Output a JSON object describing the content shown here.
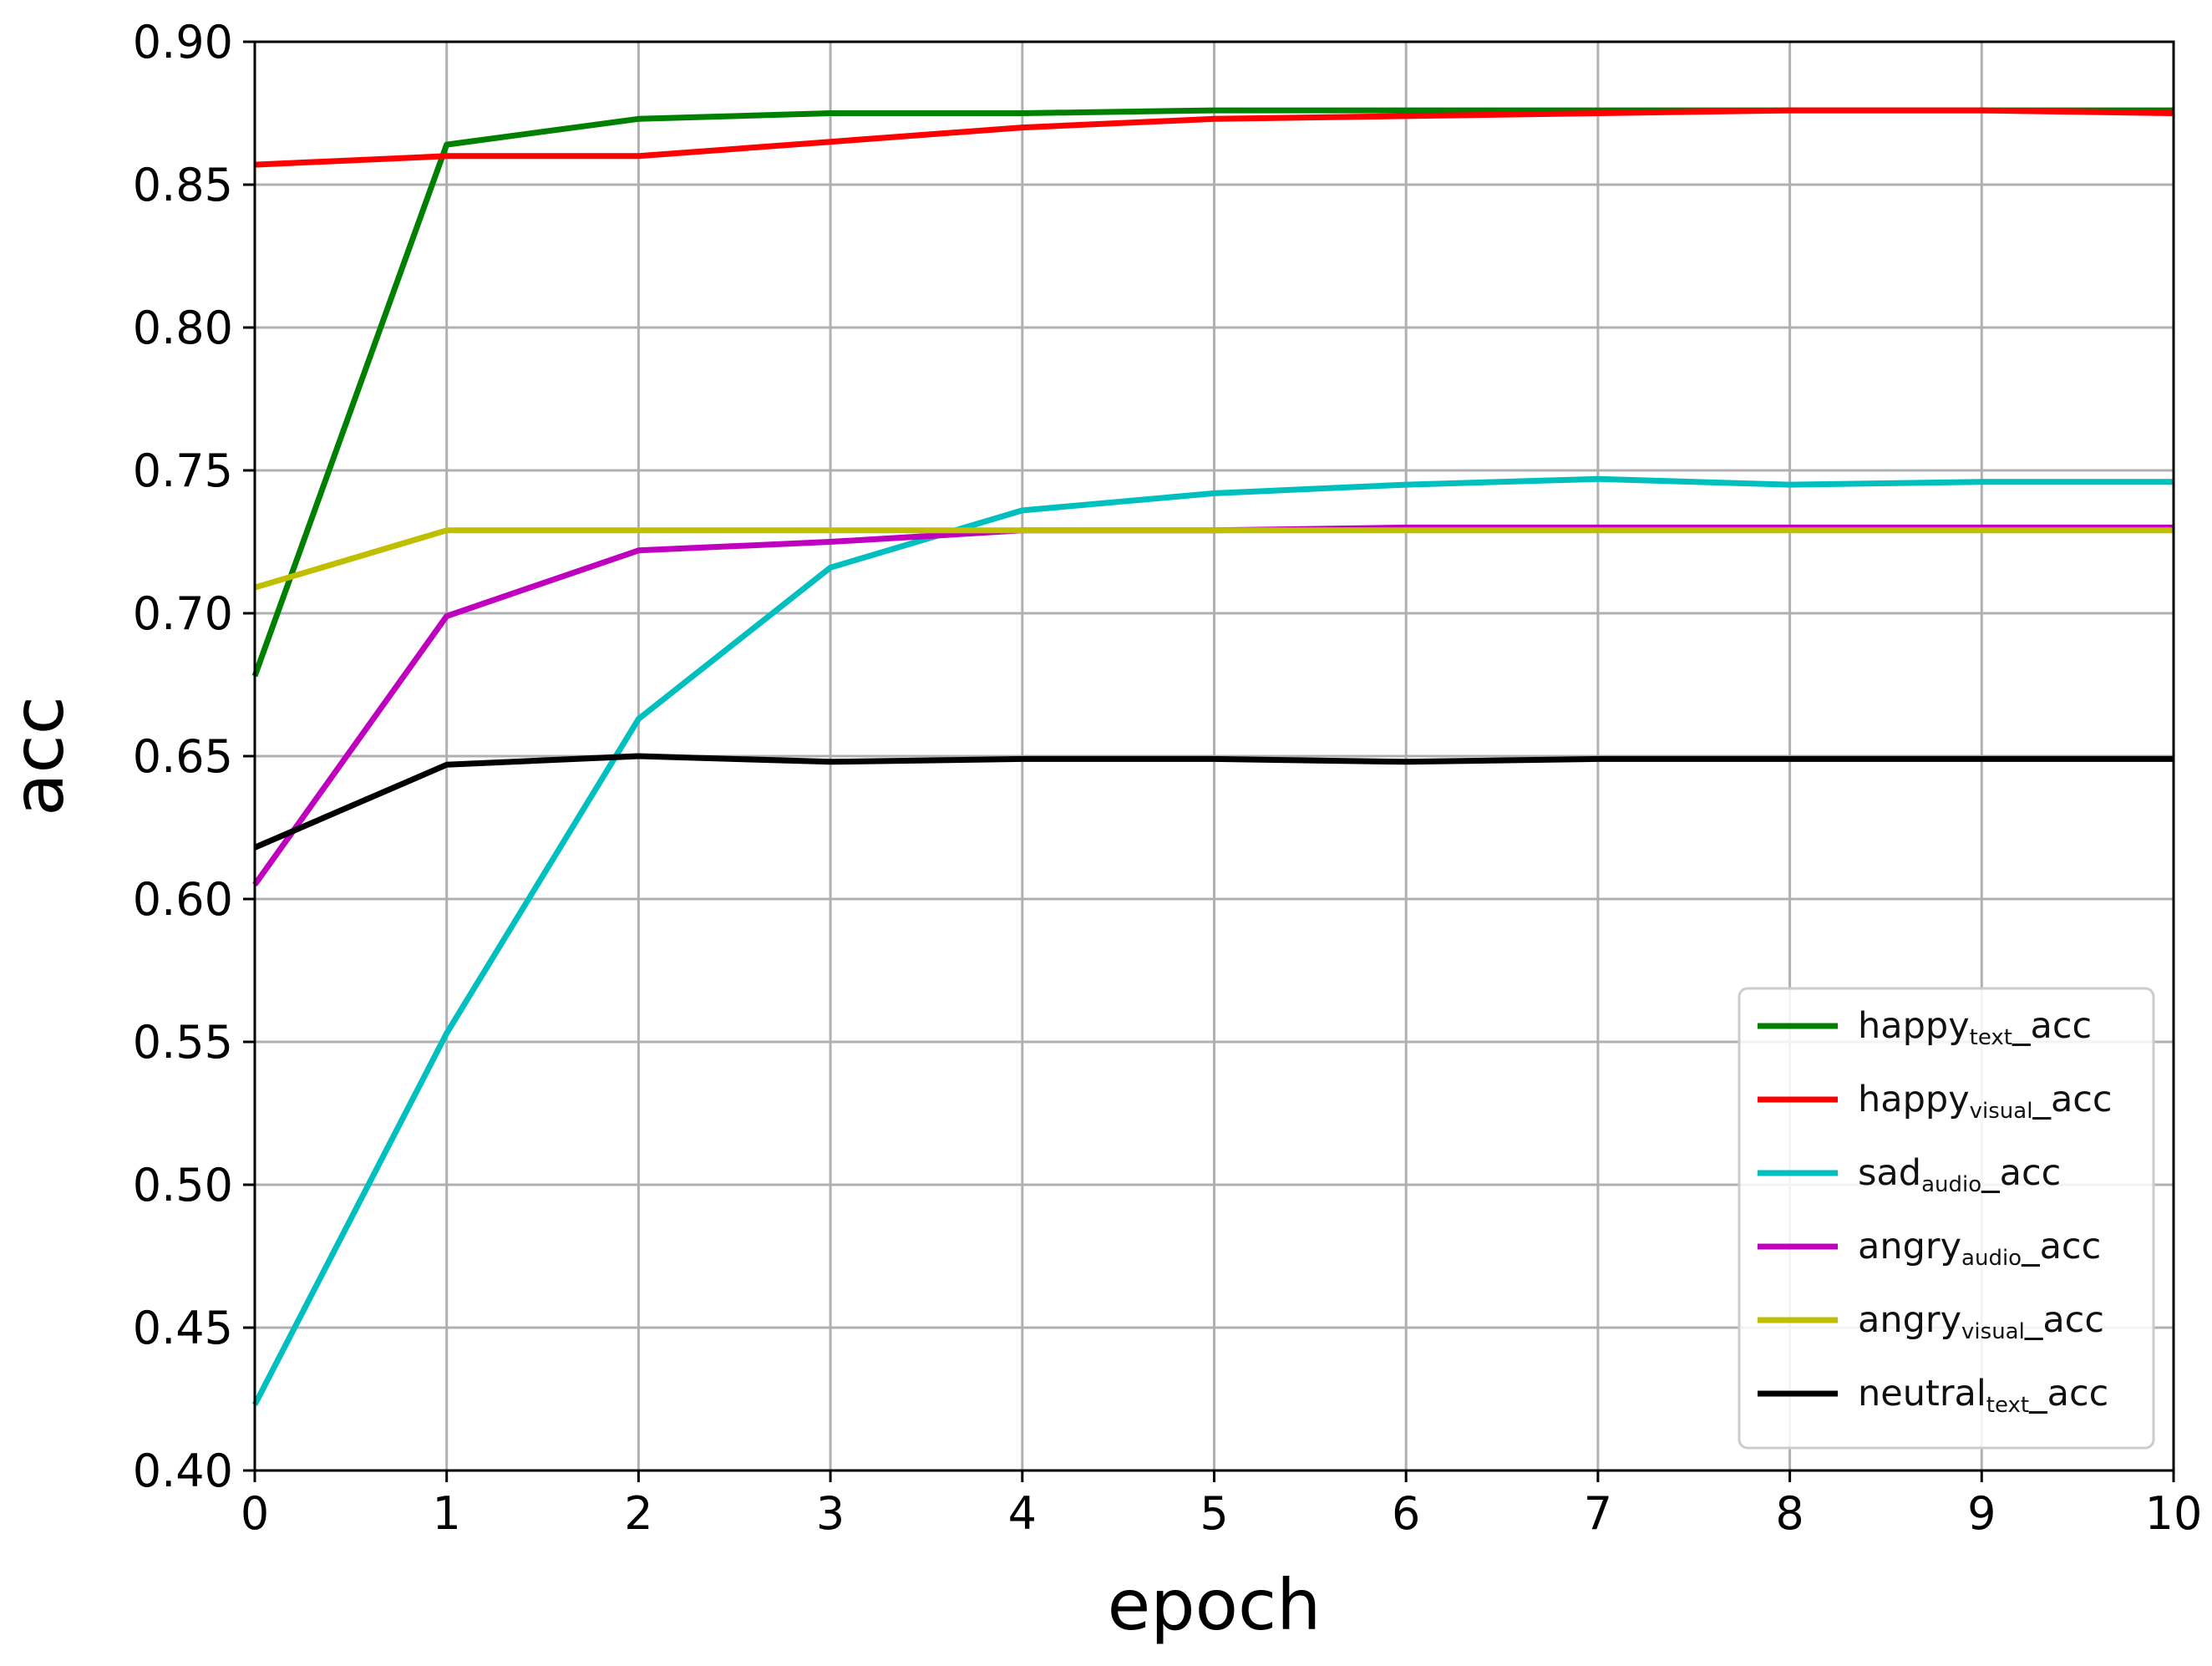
{
  "chart_data": {
    "type": "line",
    "title": "",
    "xlabel": "epoch",
    "ylabel": "acc",
    "xlim": [
      0,
      10
    ],
    "ylim": [
      0.4,
      0.9
    ],
    "xticks": [
      "0",
      "1",
      "2",
      "3",
      "4",
      "5",
      "6",
      "7",
      "8",
      "9",
      "10"
    ],
    "yticks": [
      "0.40",
      "0.45",
      "0.50",
      "0.55",
      "0.60",
      "0.65",
      "0.70",
      "0.75",
      "0.80",
      "0.85",
      "0.90"
    ],
    "grid": true,
    "legend_position": "lower-right",
    "x": [
      0,
      1,
      2,
      3,
      4,
      5,
      6,
      7,
      8,
      9,
      10
    ],
    "series": [
      {
        "name": "happy_text_acc",
        "base": "happy",
        "sub": "text",
        "suffix": "_acc",
        "color": "#008000",
        "values": [
          0.678,
          0.864,
          0.873,
          0.875,
          0.875,
          0.876,
          0.876,
          0.876,
          0.876,
          0.876,
          0.876
        ]
      },
      {
        "name": "happy_visual_acc",
        "base": "happy",
        "sub": "visual",
        "suffix": "_acc",
        "color": "#ff0000",
        "values": [
          0.857,
          0.86,
          0.86,
          0.865,
          0.87,
          0.873,
          0.874,
          0.875,
          0.876,
          0.876,
          0.875
        ]
      },
      {
        "name": "sad_audio_acc",
        "base": "sad",
        "sub": "audio",
        "suffix": "_acc",
        "color": "#00bfbf",
        "values": [
          0.423,
          0.553,
          0.663,
          0.716,
          0.736,
          0.742,
          0.745,
          0.747,
          0.745,
          0.746,
          0.746
        ]
      },
      {
        "name": "angry_audio_acc",
        "base": "angry",
        "sub": "audio",
        "suffix": "_acc",
        "color": "#bf00bf",
        "values": [
          0.605,
          0.699,
          0.722,
          0.725,
          0.729,
          0.729,
          0.73,
          0.73,
          0.73,
          0.73,
          0.73
        ]
      },
      {
        "name": "angry_visual_acc",
        "base": "angry",
        "sub": "visual",
        "suffix": "_acc",
        "color": "#bfbf00",
        "values": [
          0.709,
          0.729,
          0.729,
          0.729,
          0.729,
          0.729,
          0.729,
          0.729,
          0.729,
          0.729,
          0.729
        ]
      },
      {
        "name": "neutral_text_acc",
        "base": "neutral",
        "sub": "text",
        "suffix": "_acc",
        "color": "#000000",
        "values": [
          0.618,
          0.647,
          0.65,
          0.648,
          0.649,
          0.649,
          0.648,
          0.649,
          0.649,
          0.649,
          0.649
        ]
      }
    ]
  }
}
